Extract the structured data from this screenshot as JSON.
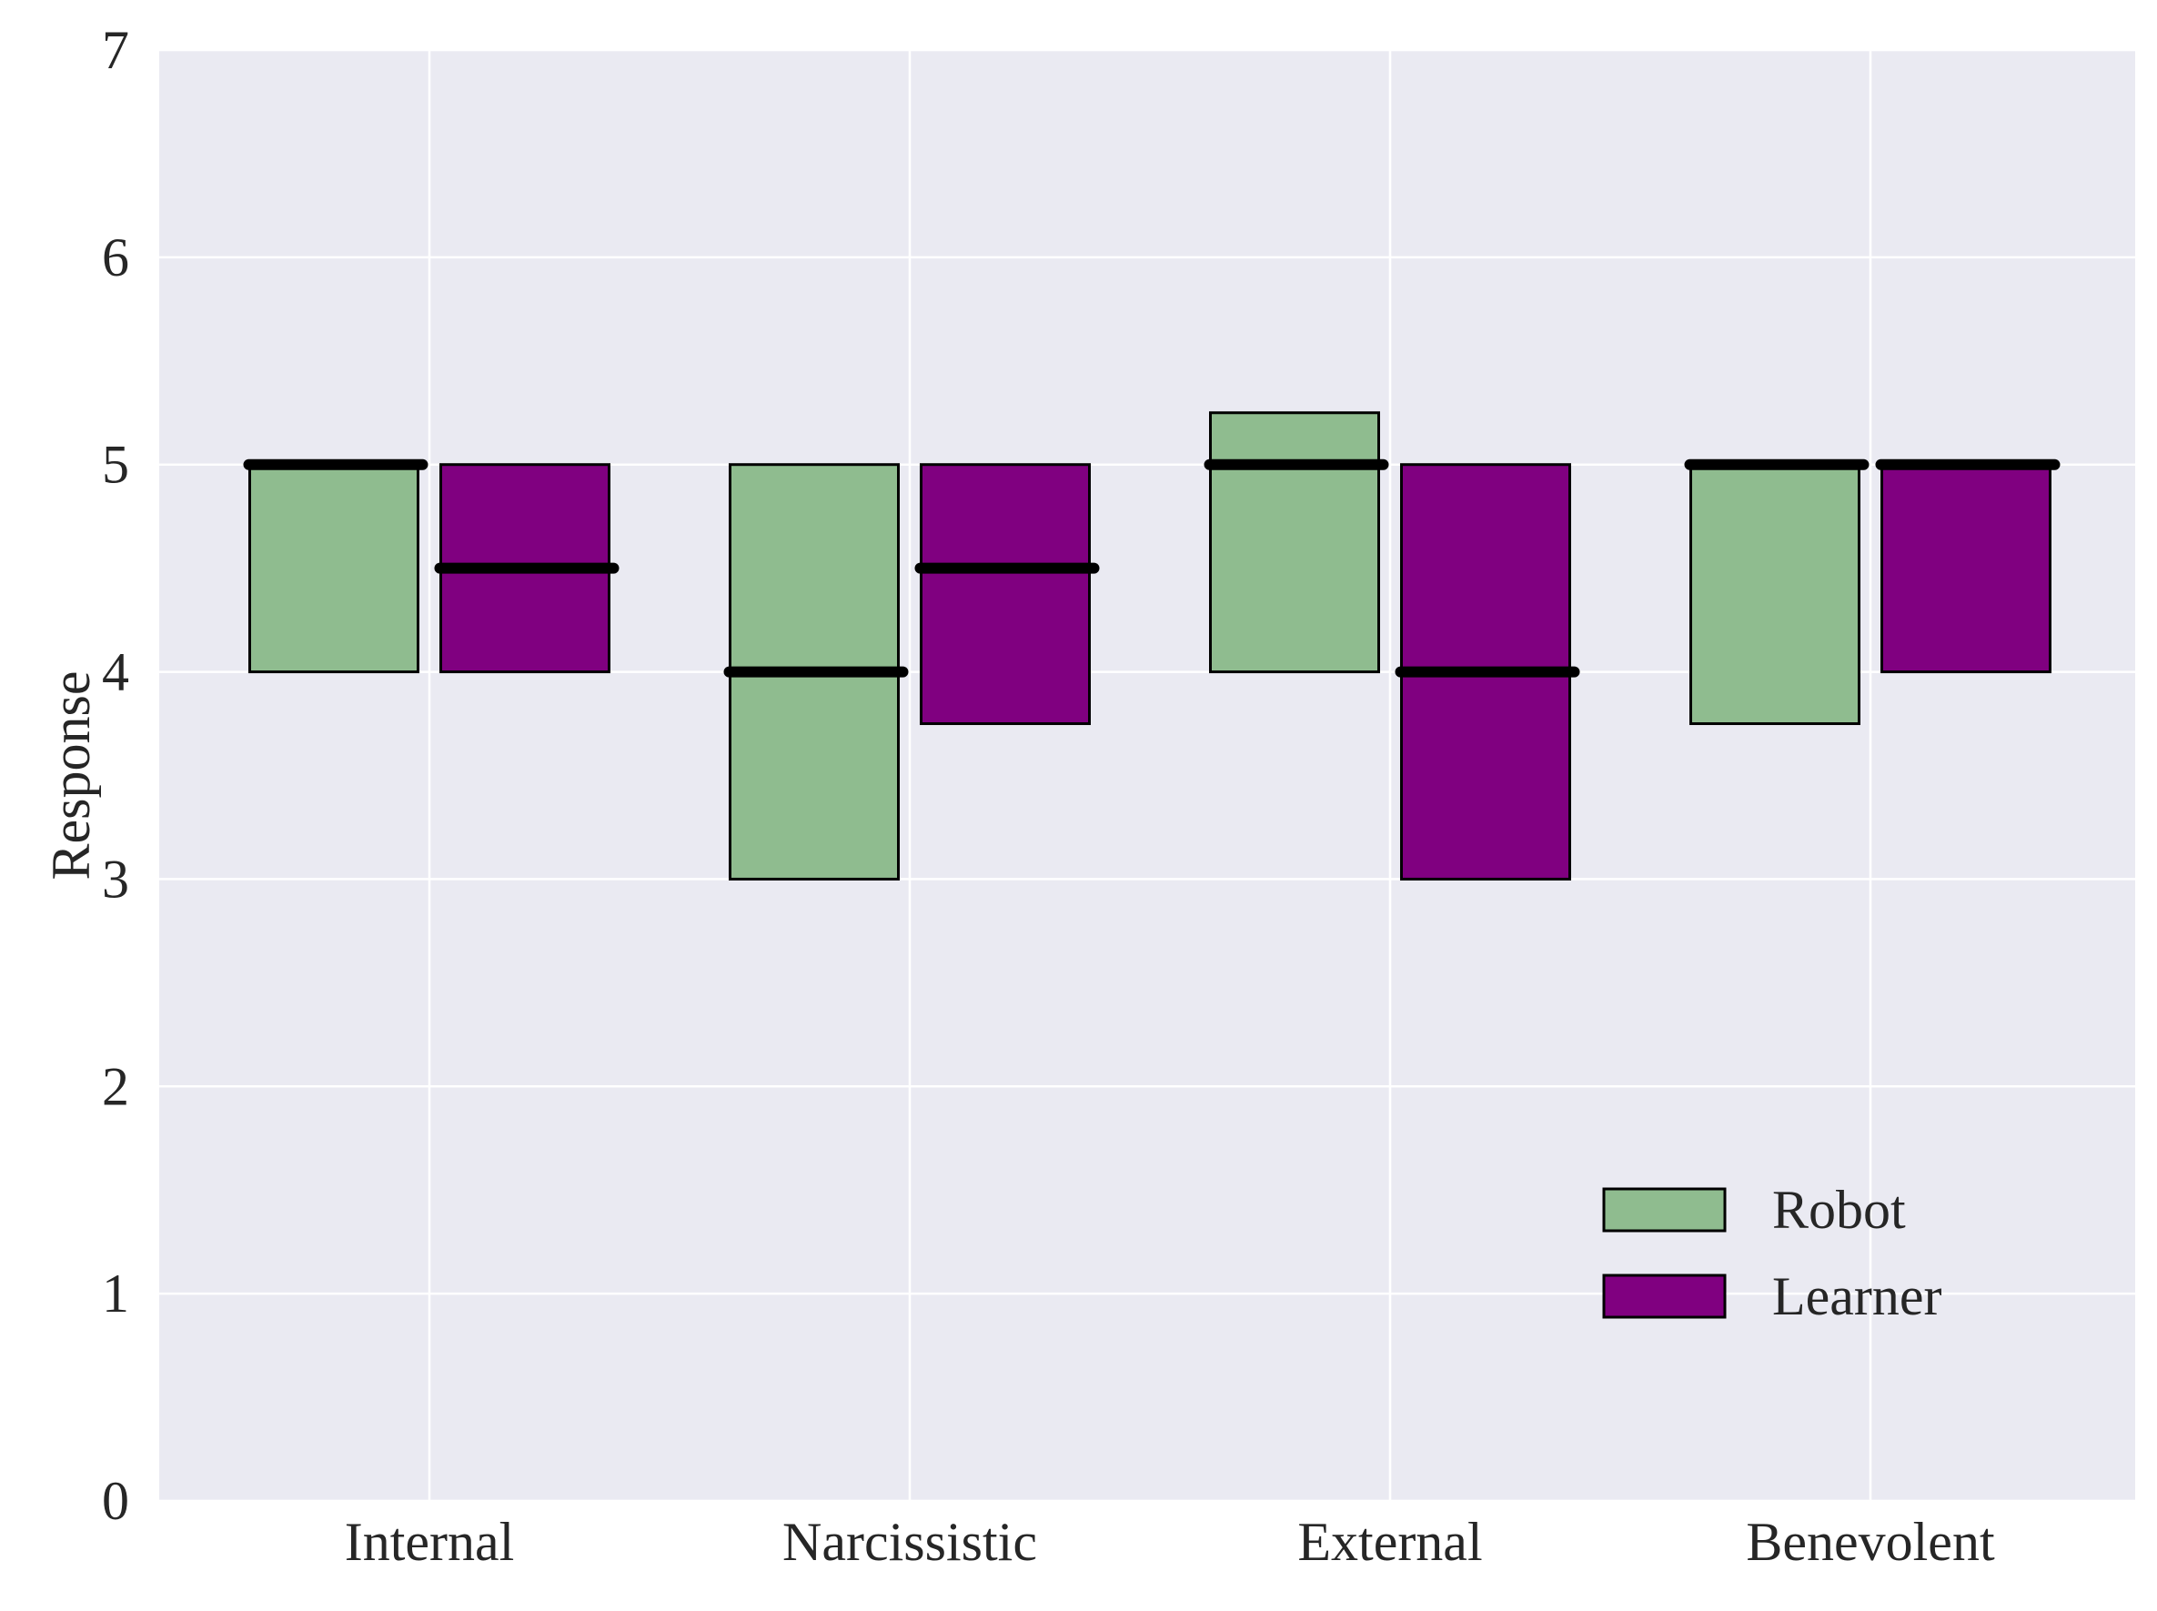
{
  "chart_data": {
    "type": "bar",
    "subtype": "floating box (interquartile range) with median line",
    "categories": [
      "Internal",
      "Narcissistic",
      "External",
      "Benevolent"
    ],
    "ylabel": "Response",
    "xlabel": "",
    "ylim": [
      0,
      7
    ],
    "yticks": [
      "0",
      "1",
      "2",
      "3",
      "4",
      "5",
      "6",
      "7"
    ],
    "grid": true,
    "legend_position": "lower-right",
    "series": [
      {
        "name": "Robot",
        "color": "#8fbc8f",
        "boxes": [
          {
            "low": 4,
            "high": 5,
            "median": 5
          },
          {
            "low": 3,
            "high": 5,
            "median": 4
          },
          {
            "low": 4,
            "high": 5.25,
            "median": 5
          },
          {
            "low": 3.75,
            "high": 5,
            "median": 5
          }
        ]
      },
      {
        "name": "Learner",
        "color": "#800080",
        "boxes": [
          {
            "low": 4,
            "high": 5,
            "median": 4.5
          },
          {
            "low": 3.75,
            "high": 5,
            "median": 4.5
          },
          {
            "low": 3,
            "high": 5,
            "median": 4
          },
          {
            "low": 4,
            "high": 5,
            "median": 5
          }
        ]
      }
    ],
    "colors": {
      "plot_background": "#eaeaf2",
      "grid": "#ffffff",
      "box_edge": "#000000",
      "median_line": "#000000"
    }
  }
}
